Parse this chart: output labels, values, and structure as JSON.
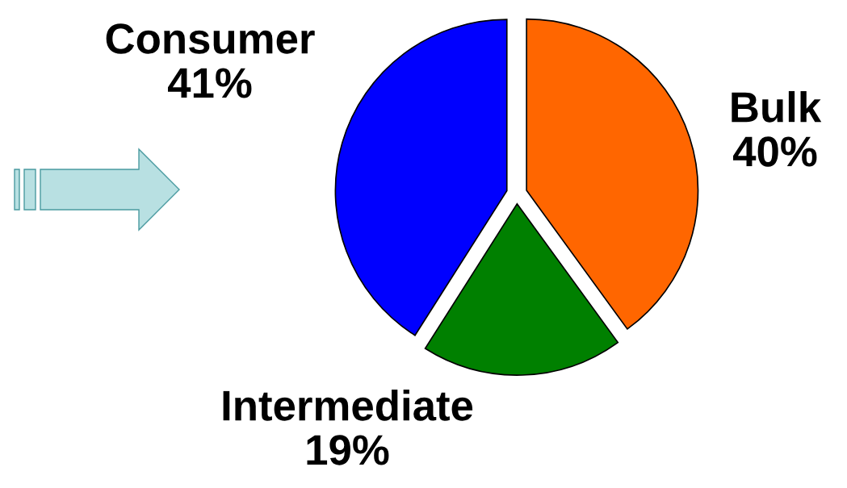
{
  "chart_data": {
    "type": "pie",
    "categories": [
      "Bulk",
      "Consumer",
      "Intermediate"
    ],
    "values": [
      40,
      41,
      19
    ],
    "value_labels": [
      "40%",
      "41%",
      "19%"
    ],
    "colors": [
      "#ff6600",
      "#0000ff",
      "#008000"
    ]
  }
}
